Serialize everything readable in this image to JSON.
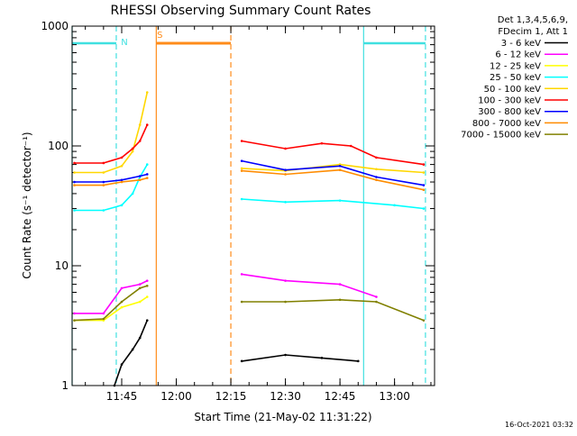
{
  "chart_data": {
    "type": "line",
    "title": "RHESSI Observing Summary Count Rates",
    "xlabel": "Start Time (21-May-02 11:31:22)",
    "ylabel": "Count Rate (s⁻¹ detector⁻¹)",
    "yscale": "log",
    "ylim": [
      1,
      1000
    ],
    "xlim": [
      "11:31:22",
      "13:11:00"
    ],
    "x_ticks": [
      "11:45",
      "12:00",
      "12:15",
      "12:30",
      "12:45",
      "13:00"
    ],
    "y_ticks": [
      "1",
      "10",
      "100",
      "1000"
    ],
    "legend_header": [
      "Det 1,3,4,5,6,9,",
      "FDecim 1, Att 1"
    ],
    "legend_position": "right",
    "timestamp": "16-Oct-2021 03:32",
    "markers": [
      {
        "label": "N",
        "color": "#40e0e0",
        "start": "11:31:22",
        "end": "11:43:30"
      },
      {
        "label": "S",
        "color": "#ff8c1a",
        "start": "11:54:30",
        "end": "12:15:00"
      },
      {
        "label": "",
        "color": "#40e0e0",
        "start": "12:51:30",
        "end": "13:08:30"
      }
    ],
    "data_gaps": [
      [
        "11:52:00",
        "12:17:00"
      ]
    ],
    "series": [
      {
        "name": "3 - 6 keV",
        "color": "#000000",
        "x": [
          "11:43",
          "11:45",
          "11:48",
          "11:50",
          "11:52",
          "12:18",
          "12:30",
          "12:40",
          "12:50"
        ],
        "values": [
          1,
          1.5,
          2,
          2.5,
          3.5,
          1.6,
          1.8,
          1.7,
          1.6
        ]
      },
      {
        "name": "6 - 12 keV",
        "color": "#ff00ff",
        "x": [
          "11:32",
          "11:40",
          "11:45",
          "11:50",
          "11:52",
          "12:18",
          "12:30",
          "12:45",
          "12:55"
        ],
        "values": [
          4,
          4,
          6.5,
          7,
          7.5,
          8.5,
          7.5,
          7,
          5.5
        ]
      },
      {
        "name": "12 - 25 keV",
        "color": "#ffff00",
        "x": [
          "11:32",
          "11:40",
          "11:45",
          "11:50",
          "11:52"
        ],
        "values": [
          3.5,
          3.5,
          4.5,
          5,
          5.5
        ]
      },
      {
        "name": "25 - 50 keV",
        "color": "#00ffff",
        "x": [
          "11:32",
          "11:40",
          "11:45",
          "11:48",
          "11:50",
          "11:52",
          "12:18",
          "12:30",
          "12:45",
          "13:00",
          "13:08"
        ],
        "values": [
          29,
          29,
          32,
          40,
          55,
          70,
          36,
          34,
          35,
          32,
          30
        ]
      },
      {
        "name": "50 - 100 keV",
        "color": "#ffd700",
        "x": [
          "11:32",
          "11:40",
          "11:45",
          "11:48",
          "11:50",
          "11:52",
          "12:18",
          "12:30",
          "12:45",
          "12:55",
          "13:08"
        ],
        "values": [
          60,
          60,
          68,
          90,
          150,
          280,
          65,
          62,
          70,
          64,
          60
        ]
      },
      {
        "name": "100 - 300 keV",
        "color": "#ff0000",
        "x": [
          "11:32",
          "11:40",
          "11:45",
          "11:48",
          "11:50",
          "11:52",
          "12:18",
          "12:30",
          "12:40",
          "12:48",
          "12:55",
          "13:08"
        ],
        "values": [
          72,
          72,
          80,
          95,
          110,
          150,
          110,
          95,
          105,
          100,
          80,
          70
        ]
      },
      {
        "name": "300 - 800 keV",
        "color": "#0000ff",
        "x": [
          "11:32",
          "11:40",
          "11:45",
          "11:50",
          "11:52",
          "12:18",
          "12:30",
          "12:45",
          "12:55",
          "13:08"
        ],
        "values": [
          50,
          50,
          52,
          56,
          58,
          75,
          63,
          68,
          55,
          47
        ]
      },
      {
        "name": "800 - 7000 keV",
        "color": "#ff8c00",
        "x": [
          "11:32",
          "11:40",
          "11:45",
          "11:50",
          "11:52",
          "12:18",
          "12:30",
          "12:45",
          "12:55",
          "13:08"
        ],
        "values": [
          47,
          47,
          50,
          52,
          54,
          62,
          58,
          63,
          52,
          43
        ]
      },
      {
        "name": "7000 - 15000 keV",
        "color": "#808000",
        "x": [
          "11:32",
          "11:40",
          "11:45",
          "11:50",
          "11:52",
          "12:18",
          "12:30",
          "12:45",
          "12:55",
          "13:08"
        ],
        "values": [
          3.5,
          3.6,
          5,
          6.5,
          6.8,
          5,
          5,
          5.2,
          5,
          3.5
        ]
      }
    ]
  }
}
